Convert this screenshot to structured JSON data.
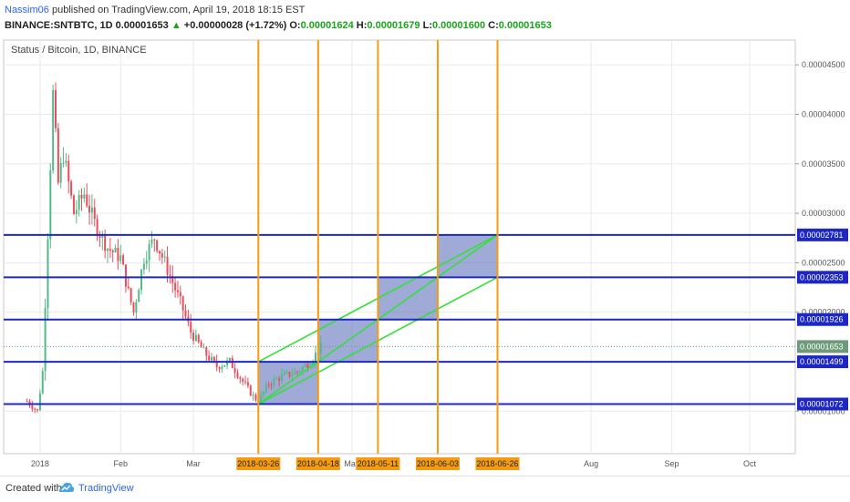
{
  "header": {
    "author": "Nassim06",
    "published": "published on TradingView.com, April 19, 2018 18:15 EST",
    "symbol": "BINANCE:SNTBTC, 1D",
    "last": "0.00001653",
    "change": "+0.00000028 (+1.72%)",
    "o_label": "O:",
    "o": "0.00001624",
    "h_label": "H:",
    "h": "0.00001679",
    "l_label": "L:",
    "l": "0.00001600",
    "c_label": "C:",
    "c": "0.00001653"
  },
  "chart_data": {
    "type": "candlestick",
    "title": "Status / Bitcoin, 1D, BINANCE",
    "y_ticks": [
      "0.00004500",
      "0.00004000",
      "0.00003500",
      "0.00003000",
      "0.00002500",
      "0.00002000",
      "0.00001500",
      "0.00001000"
    ],
    "ylim": [
      5.7e-06,
      4.75e-05
    ],
    "x_ticks": [
      "2018",
      "Feb",
      "Mar",
      "May",
      "Aug",
      "Sep",
      "Oct"
    ],
    "horizontal_levels": [
      2.781e-05,
      2.353e-05,
      1.926e-05,
      1.499e-05,
      1.072e-05
    ],
    "level_labels": [
      "0.00002781",
      "0.00002353",
      "0.00001926",
      "0.00001499",
      "0.00001072"
    ],
    "current_price": 1.653e-05,
    "current_label": "0.00001653",
    "vertical_dates": [
      "2018-03-26",
      "2018-04-18",
      "2018-05-11",
      "2018-06-03",
      "2018-06-26"
    ],
    "price_path": [
      [
        "2017-12-27",
        1.1e-05
      ],
      [
        "2017-12-31",
        1e-05
      ],
      [
        "2018-01-02",
        1.4e-05
      ],
      [
        "2018-01-04",
        2.8e-05
      ],
      [
        "2018-01-06",
        4.2e-05
      ],
      [
        "2018-01-08",
        3.3e-05
      ],
      [
        "2018-01-10",
        3.6e-05
      ],
      [
        "2018-01-14",
        3e-05
      ],
      [
        "2018-01-18",
        3.2e-05
      ],
      [
        "2018-01-22",
        2.9e-05
      ],
      [
        "2018-01-27",
        2.65e-05
      ],
      [
        "2018-02-01",
        2.55e-05
      ],
      [
        "2018-02-04",
        2.2e-05
      ],
      [
        "2018-02-06",
        2e-05
      ],
      [
        "2018-02-10",
        2.55e-05
      ],
      [
        "2018-02-14",
        2.75e-05
      ],
      [
        "2018-02-18",
        2.5e-05
      ],
      [
        "2018-02-24",
        2.1e-05
      ],
      [
        "2018-02-28",
        1.8e-05
      ],
      [
        "2018-03-05",
        1.6e-05
      ],
      [
        "2018-03-10",
        1.45e-05
      ],
      [
        "2018-03-15",
        1.5e-05
      ],
      [
        "2018-03-20",
        1.3e-05
      ],
      [
        "2018-03-24",
        1.15e-05
      ],
      [
        "2018-03-26",
        1.1e-05
      ],
      [
        "2018-03-30",
        1.28e-05
      ],
      [
        "2018-04-04",
        1.35e-05
      ],
      [
        "2018-04-10",
        1.4e-05
      ],
      [
        "2018-04-15",
        1.5e-05
      ],
      [
        "2018-04-19",
        1.65e-05
      ]
    ],
    "boxes": [
      {
        "from": "2018-03-26",
        "to": "2018-04-18",
        "low": 1.072e-05,
        "high": 1.499e-05
      },
      {
        "from": "2018-04-18",
        "to": "2018-05-11",
        "low": 1.499e-05,
        "high": 1.926e-05
      },
      {
        "from": "2018-05-11",
        "to": "2018-06-03",
        "low": 1.926e-05,
        "high": 2.353e-05
      },
      {
        "from": "2018-06-03",
        "to": "2018-06-26",
        "low": 2.353e-05,
        "high": 2.781e-05
      }
    ],
    "channel": {
      "from": "2018-03-26",
      "to": "2018-06-26",
      "lower_start": 1.072e-05,
      "lower_end": 2.353e-05,
      "mid_start": 1.072e-05,
      "mid_end": 2.781e-05,
      "upper_start": 1.499e-05,
      "upper_end": 2.781e-05
    },
    "colors": {
      "up": "#53b987",
      "down": "#eb4d5c",
      "level": "#1d28c4",
      "vertical": "#f59b12",
      "box": "rgba(80,102,180,0.55)",
      "channel": "#33e03a",
      "grid": "#eaeaea",
      "current_bg": "#6d9b79",
      "label_bg": "#1d28c4",
      "date_bg": "#f59b12"
    }
  },
  "footer": {
    "created": "Created with",
    "brand": "TradingView"
  }
}
